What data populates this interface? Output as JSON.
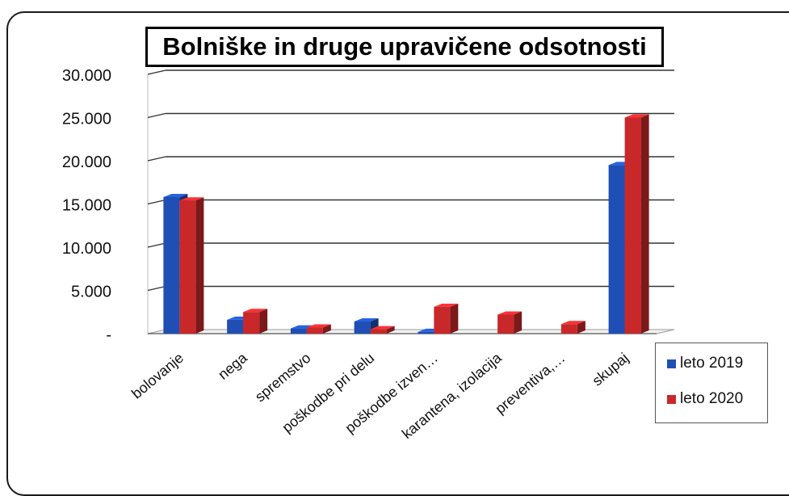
{
  "chart_data": {
    "type": "bar",
    "title": "Bolniške in druge upravičene odsotnosti",
    "categories": [
      "bolovanje",
      "nega",
      "spremstvo",
      "poškodbe pri delu",
      "poškodbe izven…",
      "karantena, izolacija",
      "preventiva,…",
      "skupaj"
    ],
    "series": [
      {
        "name": "leto 2019",
        "values": [
          15800,
          1600,
          600,
          1400,
          200,
          0,
          0,
          19500
        ],
        "color": "#1f4fb5"
      },
      {
        "name": "leto 2020",
        "values": [
          15400,
          2500,
          700,
          500,
          3100,
          2200,
          1100,
          25000
        ],
        "color": "#c8282a"
      }
    ],
    "ylim": [
      0,
      30000
    ],
    "yticks": [
      "-",
      "5.000",
      "10.000",
      "15.000",
      "20.000",
      "25.000",
      "30.000"
    ],
    "grid": true,
    "legend_position": "right"
  }
}
